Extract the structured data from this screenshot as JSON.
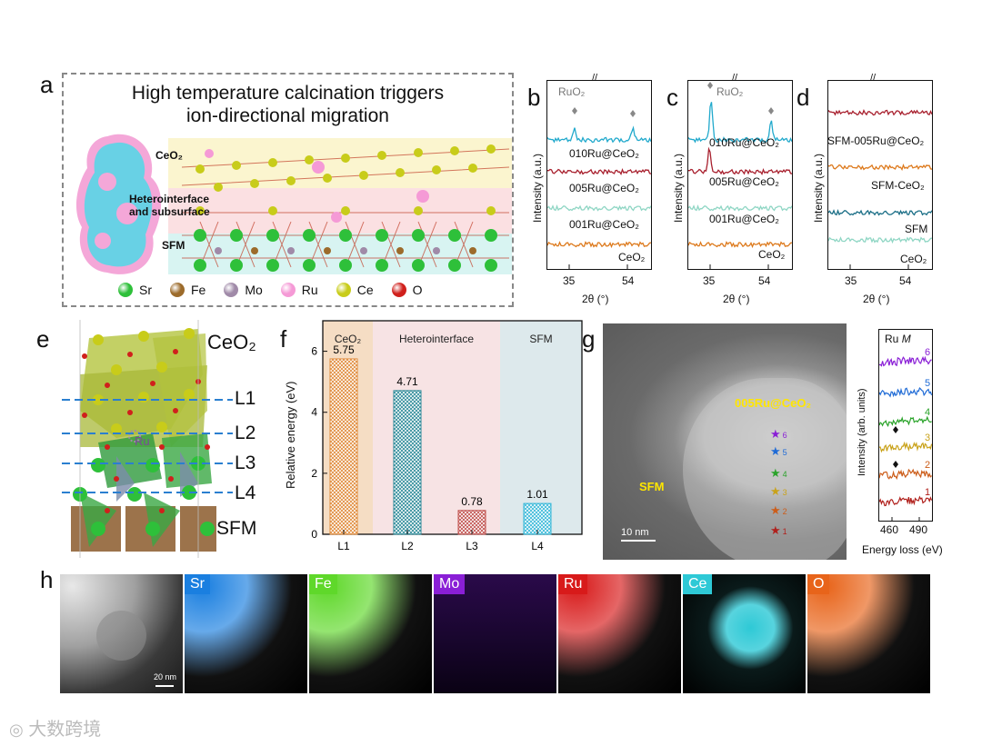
{
  "panels": {
    "a": "a",
    "b": "b",
    "c": "c",
    "d": "d",
    "e": "e",
    "f": "f",
    "g": "g",
    "h": "h"
  },
  "panel_a": {
    "title_line1": "High temperature calcination triggers",
    "title_line2": "ion-directional migration",
    "labels": {
      "ceo2": "CeO₂",
      "hetero1": "Heterointerface",
      "hetero2": "and subsurface",
      "sfm": "SFM"
    },
    "legend": [
      {
        "name": "Sr",
        "color": "#2ec03a"
      },
      {
        "name": "Fe",
        "color": "#9c6b2b"
      },
      {
        "name": "Mo",
        "color": "#a08aa8"
      },
      {
        "name": "Ru",
        "color": "#f59ad6"
      },
      {
        "name": "Ce",
        "color": "#c8cc1a"
      },
      {
        "name": "O",
        "color": "#d0201c"
      }
    ]
  },
  "xrd_common": {
    "ylabel": "Intensity (a.u.)",
    "xlabel": "2θ (°)",
    "xticks": [
      "35",
      "54"
    ],
    "break_mark": "//"
  },
  "panel_b": {
    "peak_label": "RuO₂",
    "traces": [
      {
        "label": "010Ru@CeO₂",
        "color": "#21a9cc"
      },
      {
        "label": "005Ru@CeO₂",
        "color": "#a8202e"
      },
      {
        "label": "001Ru@CeO₂",
        "color": "#8fd6c4"
      },
      {
        "label": "CeO₂",
        "color": "#dd7a1d"
      }
    ]
  },
  "panel_c": {
    "peak_label": "RuO₂",
    "traces": [
      {
        "label": "010Ru@CeO₂",
        "color": "#21a9cc"
      },
      {
        "label": "005Ru@CeO₂",
        "color": "#a8202e"
      },
      {
        "label": "001Ru@CeO₂",
        "color": "#8fd6c4"
      },
      {
        "label": "CeO₂",
        "color": "#dd7a1d"
      }
    ]
  },
  "panel_d": {
    "traces": [
      {
        "label": "SFM-005Ru@CeO₂",
        "color": "#a8202e"
      },
      {
        "label": "SFM-CeO₂",
        "color": "#dd7a1d"
      },
      {
        "label": "SFM",
        "color": "#1a6e86"
      },
      {
        "label": "CeO₂",
        "color": "#8fd6c4"
      }
    ]
  },
  "panel_e": {
    "ceo2": "CeO₂",
    "sfm": "SFM",
    "ru": "Ru",
    "layers": [
      "L1",
      "L2",
      "L3",
      "L4"
    ]
  },
  "chart_data": {
    "type": "bar",
    "title": "",
    "categories": [
      "L1",
      "L2",
      "L3",
      "L4"
    ],
    "values": [
      5.75,
      4.71,
      0.78,
      1.01
    ],
    "value_labels": [
      "5.75",
      "4.71",
      "0.78",
      "1.01"
    ],
    "ylabel": "Relative energy (eV)",
    "ylim": [
      0,
      7
    ],
    "yticks": [
      "0",
      "2",
      "4",
      "6"
    ],
    "regions": [
      {
        "label": "CeO₂",
        "color": "#f5ddc4"
      },
      {
        "label": "Heterointerface",
        "color": "#f7e3e4"
      },
      {
        "label": "SFM",
        "color": "#dde9ec"
      }
    ],
    "bar_colors": [
      "#e08a3a",
      "#2e8a99",
      "#c0504d",
      "#36b8d8"
    ]
  },
  "panel_g": {
    "sample_label": "005Ru@CeO₂",
    "sfm_label": "SFM",
    "scale": "10 nm",
    "points": [
      "6",
      "5",
      "4",
      "3",
      "2",
      "1"
    ],
    "point_colors": [
      "#8a1fd6",
      "#1f6bd6",
      "#2aa32a",
      "#c9a21a",
      "#cc5d1a",
      "#b0201c"
    ],
    "eels": {
      "title": "Ru",
      "title_italic": "M",
      "ylabel": "Intensity (arb. units)",
      "xlabel": "Energy loss (eV)",
      "xticks": [
        "460",
        "490"
      ]
    }
  },
  "panel_h": {
    "scale": "20 nm",
    "maps": [
      {
        "label": "Sr",
        "color": "#1a7fe0"
      },
      {
        "label": "Fe",
        "color": "#5fd82a"
      },
      {
        "label": "Mo",
        "color": "#8a1fd6"
      },
      {
        "label": "Ru",
        "color": "#d81a1a"
      },
      {
        "label": "Ce",
        "color": "#2ec9d6"
      },
      {
        "label": "O",
        "color": "#e8641a"
      }
    ]
  },
  "watermark": "大数跨境"
}
